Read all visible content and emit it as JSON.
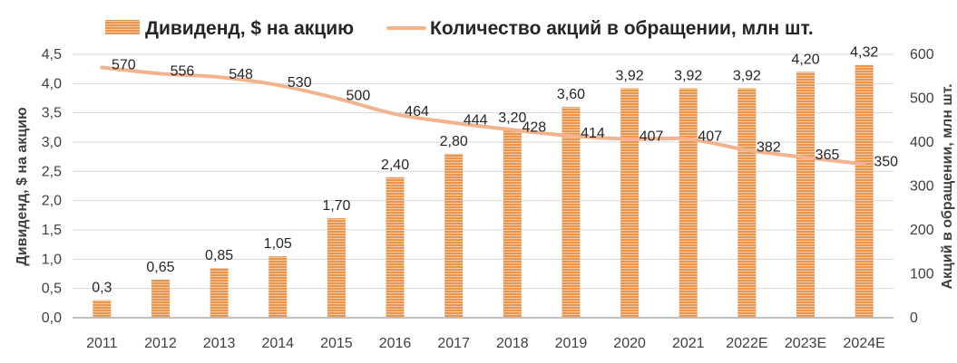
{
  "chart_data": {
    "type": "bar+line",
    "categories": [
      "2011",
      "2012",
      "2013",
      "2014",
      "2015",
      "2016",
      "2017",
      "2018",
      "2019",
      "2020",
      "2021",
      "2022E",
      "2023E",
      "2024E"
    ],
    "series": [
      {
        "name": "Дивиденд, $ на акцию",
        "type": "bar",
        "axis": "left",
        "color": "#E8954E",
        "values": [
          0.3,
          0.65,
          0.85,
          1.05,
          1.7,
          2.4,
          2.8,
          3.2,
          3.6,
          3.92,
          3.92,
          3.92,
          4.2,
          4.32
        ],
        "labels": [
          "0,3",
          "0,65",
          "0,85",
          "1,05",
          "1,70",
          "2,40",
          "2,80",
          "3,20",
          "3,60",
          "3,92",
          "3,92",
          "3,92",
          "4,20",
          "4,32"
        ]
      },
      {
        "name": "Количество акций в обращении, млн шт.",
        "type": "line",
        "axis": "right",
        "color": "#F2B48E",
        "values": [
          570,
          556,
          548,
          530,
          500,
          464,
          444,
          428,
          414,
          407,
          407,
          382,
          365,
          350
        ],
        "labels": [
          "570",
          "556",
          "548",
          "530",
          "500",
          "464",
          "444",
          "428",
          "414",
          "407",
          "407",
          "382",
          "365",
          "350"
        ]
      }
    ],
    "y_left": {
      "label": "Дивиденд, $ на акцию",
      "range": [
        0,
        4.5
      ],
      "ticks": [
        0,
        0.5,
        1,
        1.5,
        2,
        2.5,
        3,
        3.5,
        4,
        4.5
      ],
      "tick_labels": [
        "0,0",
        "0,5",
        "1,0",
        "1,5",
        "2,0",
        "2,5",
        "3,0",
        "3,5",
        "4,0",
        "4,5"
      ]
    },
    "y_right": {
      "label": "Акций в обращении, млн шт.",
      "range": [
        0,
        600
      ],
      "ticks": [
        0,
        100,
        200,
        300,
        400,
        500,
        600
      ],
      "tick_labels": [
        "0",
        "100",
        "200",
        "300",
        "400",
        "500",
        "600"
      ]
    },
    "grid": true,
    "legend_position": "top"
  }
}
